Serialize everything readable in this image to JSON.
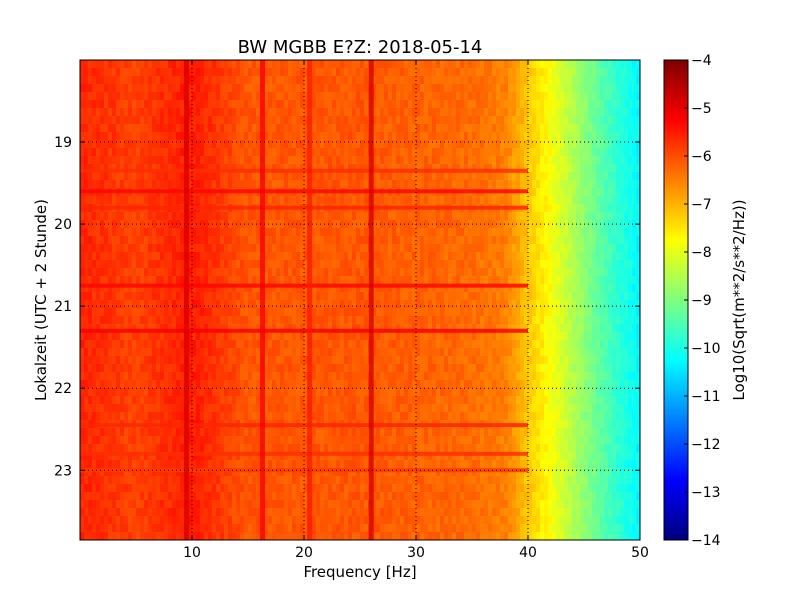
{
  "chart_data": {
    "type": "heatmap",
    "title": "BW MGBB E?Z: 2018-05-14",
    "xlabel": "Frequency [Hz]",
    "ylabel": "Lokalzeit (UTC + 2 Stunde)",
    "xlim": [
      0,
      50
    ],
    "ylim": [
      18.0,
      23.85
    ],
    "x_ticks": [
      10,
      20,
      30,
      40,
      50
    ],
    "y_ticks": [
      19,
      20,
      21,
      22,
      23
    ],
    "grid": true,
    "colorbar": {
      "label": "Log10(Sqrt(m**2/s**2/Hz))",
      "range": [
        -14,
        -4
      ],
      "ticks": [
        -4,
        -5,
        -6,
        -7,
        -8,
        -9,
        -10,
        -11,
        -12,
        -13,
        -14
      ],
      "colormap": "jet",
      "colors": [
        "#00007f",
        "#0000ff",
        "#007fff",
        "#00ffff",
        "#7fff7f",
        "#ffff00",
        "#ff7f00",
        "#ff0000",
        "#7f0000"
      ]
    },
    "spectrum_profile": [
      {
        "frequency": 0,
        "value": -5.6
      },
      {
        "frequency": 5,
        "value": -5.9
      },
      {
        "frequency": 10,
        "value": -5.5
      },
      {
        "frequency": 15,
        "value": -6.1
      },
      {
        "frequency": 20,
        "value": -6.1
      },
      {
        "frequency": 25,
        "value": -6.1
      },
      {
        "frequency": 30,
        "value": -6.2
      },
      {
        "frequency": 35,
        "value": -6.3
      },
      {
        "frequency": 38,
        "value": -6.5
      },
      {
        "frequency": 40,
        "value": -7.2
      },
      {
        "frequency": 42,
        "value": -7.8
      },
      {
        "frequency": 44,
        "value": -8.5
      },
      {
        "frequency": 46,
        "value": -9.2
      },
      {
        "frequency": 48,
        "value": -9.8
      },
      {
        "frequency": 50,
        "value": -10.3
      }
    ],
    "vertical_lines": [
      {
        "frequency": 9.5,
        "value": -4.9
      },
      {
        "frequency": 16.3,
        "value": -5.2
      },
      {
        "frequency": 20.5,
        "value": -5.5
      },
      {
        "frequency": 26.0,
        "value": -4.9
      }
    ],
    "horizontal_bands": [
      {
        "time": 19.6,
        "value": -5.3
      },
      {
        "time": 19.35,
        "value": -5.7
      },
      {
        "time": 19.8,
        "value": -5.6
      },
      {
        "time": 20.75,
        "value": -5.3
      },
      {
        "time": 21.3,
        "value": -5.2
      },
      {
        "time": 22.45,
        "value": -5.6
      },
      {
        "time": 22.8,
        "value": -5.7
      },
      {
        "time": 23.0,
        "value": -5.8
      }
    ]
  }
}
